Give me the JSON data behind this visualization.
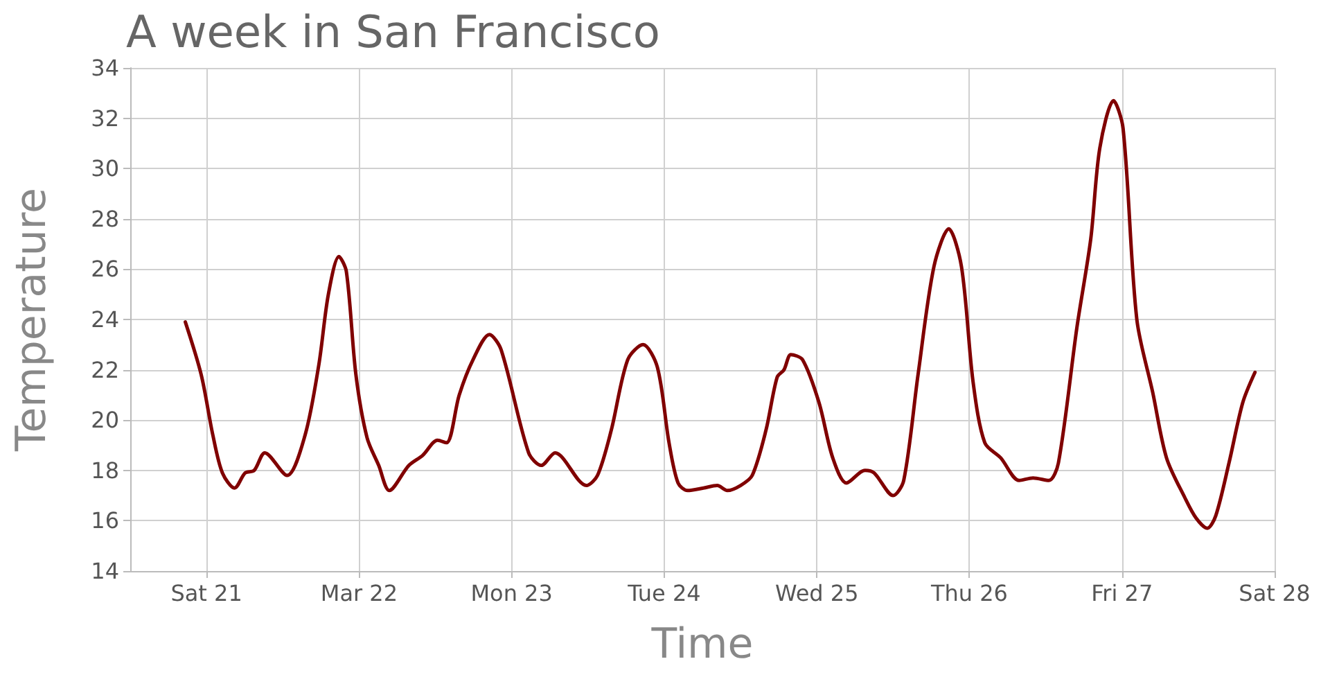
{
  "chart_data": {
    "type": "line",
    "title": "A week in San Francisco",
    "xlabel": "Time",
    "ylabel": "Temperature",
    "x": [
      "--03-20T20:40",
      "--03-20T23:10",
      "--03-21T01:00",
      "--03-21T02:30",
      "--03-21T04:25",
      "--03-21T06:05",
      "--03-21T07:30",
      "--03-21T09:10",
      "--03-21T12:40",
      "--03-21T15:30",
      "--03-21T17:40",
      "--03-21T19:10",
      "--03-21T20:50",
      "--03-21T22:00",
      "--03-21T23:30",
      "--03-22T01:15",
      "--03-22T03:05",
      "--03-22T04:45",
      "--03-22T07:50",
      "--03-22T10:00",
      "--03-22T12:20",
      "--03-22T13:45",
      "--03-22T15:45",
      "--03-22T17:55",
      "--03-22T20:30",
      "--03-22T22:20",
      "--03-23T02:40",
      "--03-23T04:40",
      "--03-23T06:50",
      "--03-23T11:45",
      "--03-23T13:30",
      "--03-23T15:40",
      "--03-23T18:15",
      "--03-23T20:40",
      "--03-23T22:55",
      "--03-24T00:45",
      "--03-24T02:10",
      "--03-24T03:40",
      "--03-24T06:10",
      "--03-24T08:20",
      "--03-24T09:55",
      "--03-24T12:00",
      "--03-24T13:50",
      "--03-24T16:00",
      "--03-24T17:45",
      "--03-24T18:50",
      "--03-24T19:55",
      "--03-24T21:45",
      "--03-25T00:20",
      "--03-25T02:30",
      "--03-25T04:40",
      "--03-25T07:35",
      "--03-25T09:00",
      "--03-25T12:00",
      "--03-25T13:40",
      "--03-25T15:55",
      "--03-25T18:25",
      "--03-25T20:45",
      "--03-25T22:45",
      "--03-26T00:35",
      "--03-26T02:25",
      "--03-26T04:55",
      "--03-26T07:50",
      "--03-26T10:00",
      "--03-26T12:30",
      "--03-26T14:00",
      "--03-26T16:55",
      "--03-26T19:05",
      "--03-26T20:30",
      "--03-26T22:40",
      "--03-27T00:10",
      "--03-27T02:20",
      "--03-27T04:50",
      "--03-27T07:00",
      "--03-27T09:55",
      "--03-27T11:40",
      "--03-27T13:25",
      "--03-27T14:45",
      "--03-27T16:50",
      "--03-27T19:00",
      "--03-27T20:55"
    ],
    "series": [
      {
        "color": "#800000",
        "values": [
          23.9,
          21.8,
          19.4,
          17.9,
          17.3,
          17.9,
          18.0,
          18.7,
          17.8,
          19.4,
          22.2,
          25.0,
          26.5,
          25.9,
          21.8,
          19.3,
          18.2,
          17.2,
          18.2,
          18.6,
          19.2,
          19.1,
          21.0,
          22.4,
          23.4,
          22.8,
          18.7,
          18.2,
          18.7,
          17.4,
          17.8,
          19.6,
          22.4,
          23.0,
          22.1,
          19.1,
          17.5,
          17.2,
          17.3,
          17.4,
          17.2,
          17.4,
          17.8,
          19.6,
          21.7,
          22.0,
          22.6,
          22.4,
          20.7,
          18.5,
          17.5,
          18.0,
          17.9,
          17.0,
          17.6,
          21.8,
          26.1,
          27.6,
          26.1,
          21.5,
          19.1,
          18.5,
          17.6,
          17.7,
          17.6,
          18.3,
          23.7,
          27.2,
          30.8,
          32.7,
          31.6,
          24.0,
          21.1,
          18.5,
          16.9,
          16.1,
          15.7,
          16.2,
          18.3,
          20.7,
          21.9
        ]
      }
    ],
    "xlim": [
      "--03-20T12:00",
      "--03-28T00:00"
    ],
    "xticks": [
      {
        "value": "--03-21",
        "label": "Sat 21"
      },
      {
        "value": "--03-22",
        "label": "Mar 22"
      },
      {
        "value": "--03-23",
        "label": "Mon 23"
      },
      {
        "value": "--03-24",
        "label": "Tue 24"
      },
      {
        "value": "--03-25",
        "label": "Wed 25"
      },
      {
        "value": "--03-26",
        "label": "Thu 26"
      },
      {
        "value": "--03-27",
        "label": "Fri 27"
      },
      {
        "value": "--03-28",
        "label": "Sat 28"
      }
    ],
    "ylim": [
      14,
      34
    ],
    "yticks": [
      14,
      16,
      18,
      20,
      22,
      24,
      26,
      28,
      30,
      32,
      34
    ],
    "grid": true,
    "marker": "none",
    "line_style": "solid"
  }
}
